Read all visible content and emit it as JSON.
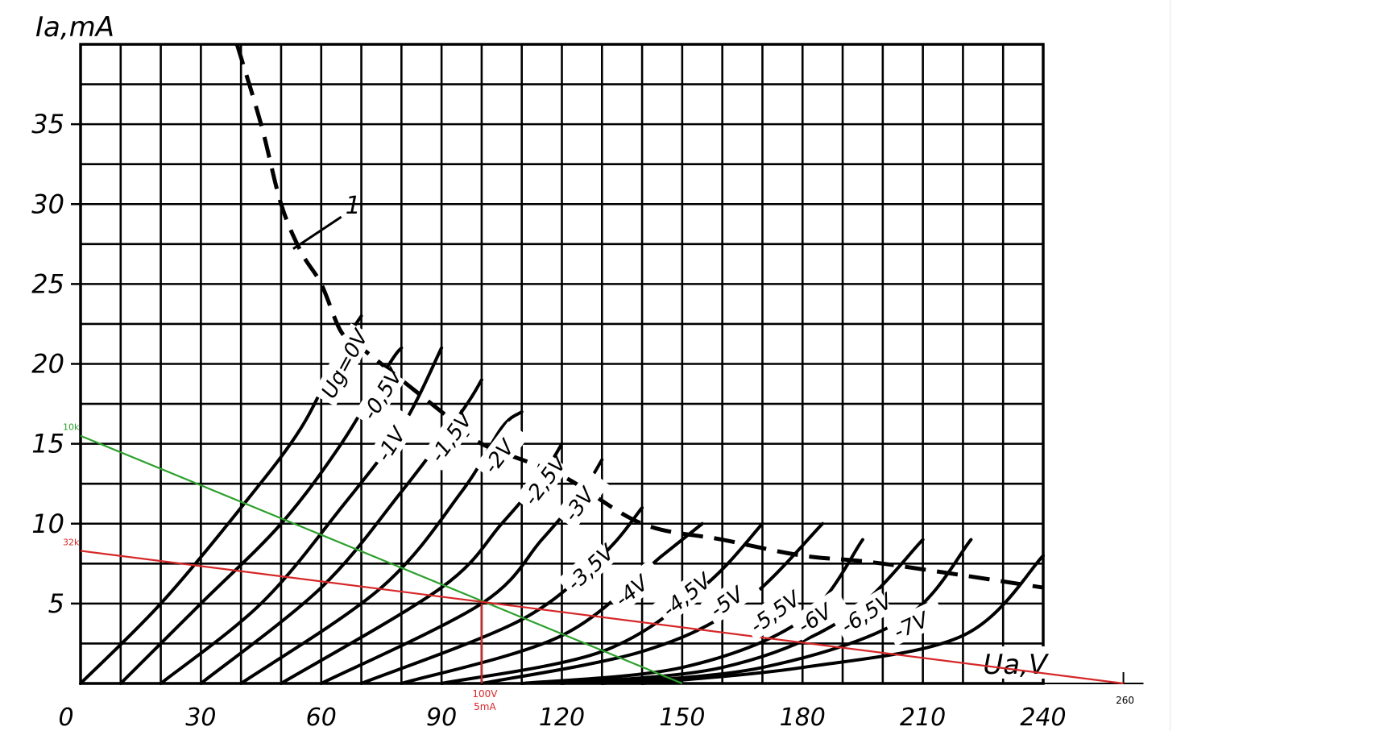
{
  "chart_data": {
    "type": "line",
    "xlabel": "Ua,V",
    "ylabel": "Ia,mA",
    "xlim": [
      0,
      240
    ],
    "ylim": [
      0,
      40
    ],
    "x_ticks": [
      "0",
      "30",
      "60",
      "90",
      "120",
      "150",
      "180",
      "210",
      "240"
    ],
    "y_ticks": [
      "5",
      "10",
      "15",
      "20",
      "25",
      "30",
      "35"
    ],
    "grid": true,
    "annotation_label": "1",
    "curve_prefix": "Ug=",
    "curves": [
      {
        "label": "0V",
        "points": [
          [
            0,
            0
          ],
          [
            20,
            5
          ],
          [
            40,
            11
          ],
          [
            55,
            16
          ],
          [
            65,
            21
          ],
          [
            70,
            23
          ]
        ]
      },
      {
        "label": "-0,5V",
        "points": [
          [
            10,
            0
          ],
          [
            30,
            5
          ],
          [
            50,
            10
          ],
          [
            65,
            15
          ],
          [
            77,
            20
          ],
          [
            80,
            21
          ]
        ]
      },
      {
        "label": "-1V",
        "points": [
          [
            20,
            0
          ],
          [
            45,
            5
          ],
          [
            65,
            11
          ],
          [
            80,
            16
          ],
          [
            90,
            21
          ]
        ]
      },
      {
        "label": "-1,5V",
        "points": [
          [
            30,
            0
          ],
          [
            60,
            6
          ],
          [
            80,
            12
          ],
          [
            95,
            17
          ],
          [
            100,
            19
          ]
        ]
      },
      {
        "label": "-2V",
        "points": [
          [
            40,
            0
          ],
          [
            75,
            6
          ],
          [
            95,
            12
          ],
          [
            105,
            16
          ],
          [
            110,
            17
          ]
        ]
      },
      {
        "label": "-2,5V",
        "points": [
          [
            50,
            0
          ],
          [
            90,
            6
          ],
          [
            105,
            10
          ],
          [
            115,
            13
          ],
          [
            120,
            15
          ]
        ]
      },
      {
        "label": "-3V",
        "points": [
          [
            60,
            0
          ],
          [
            100,
            5
          ],
          [
            115,
            9
          ],
          [
            125,
            12
          ],
          [
            130,
            14
          ]
        ]
      },
      {
        "label": "-3,5V",
        "points": [
          [
            70,
            0
          ],
          [
            110,
            4
          ],
          [
            130,
            8
          ],
          [
            140,
            11
          ]
        ]
      },
      {
        "label": "-4V",
        "points": [
          [
            80,
            0
          ],
          [
            120,
            3
          ],
          [
            145,
            8
          ],
          [
            155,
            10
          ]
        ]
      },
      {
        "label": "-4,5V",
        "points": [
          [
            90,
            0
          ],
          [
            130,
            2
          ],
          [
            155,
            6
          ],
          [
            170,
            10
          ]
        ]
      },
      {
        "label": "-5V",
        "points": [
          [
            100,
            0
          ],
          [
            140,
            2
          ],
          [
            165,
            5
          ],
          [
            185,
            10
          ]
        ]
      },
      {
        "label": "-5,5V",
        "points": [
          [
            110,
            0
          ],
          [
            150,
            1
          ],
          [
            180,
            4
          ],
          [
            195,
            9
          ]
        ]
      },
      {
        "label": "-6V",
        "points": [
          [
            120,
            0
          ],
          [
            160,
            1
          ],
          [
            190,
            4
          ],
          [
            210,
            9
          ]
        ]
      },
      {
        "label": "-6,5V",
        "points": [
          [
            130,
            0
          ],
          [
            170,
            1
          ],
          [
            205,
            4
          ],
          [
            222,
            9
          ]
        ]
      },
      {
        "label": "-7V",
        "points": [
          [
            140,
            0
          ],
          [
            180,
            1
          ],
          [
            220,
            3
          ],
          [
            240,
            8
          ]
        ]
      }
    ],
    "max_dissipation_curve": [
      [
        39,
        40
      ],
      [
        45,
        35
      ],
      [
        50,
        30
      ],
      [
        55,
        27
      ],
      [
        60,
        25
      ],
      [
        65,
        22
      ],
      [
        70,
        21
      ],
      [
        80,
        19
      ],
      [
        90,
        17
      ],
      [
        100,
        15
      ],
      [
        120,
        13
      ],
      [
        140,
        10
      ],
      [
        160,
        9
      ],
      [
        180,
        8
      ],
      [
        200,
        7.5
      ],
      [
        240,
        6
      ]
    ],
    "load_lines": [
      {
        "label": "10k",
        "color": "#2ca02c",
        "points": [
          [
            0,
            15.5
          ],
          [
            150,
            0
          ]
        ]
      },
      {
        "label": "32k",
        "color": "#d62728",
        "points": [
          [
            0,
            8.3
          ],
          [
            260,
            0
          ]
        ]
      }
    ],
    "operating_point": {
      "x": 100,
      "y": 5,
      "label_v": "100V",
      "label_i": "5mA",
      "color": "#d62728"
    },
    "extra_tick": "260"
  }
}
